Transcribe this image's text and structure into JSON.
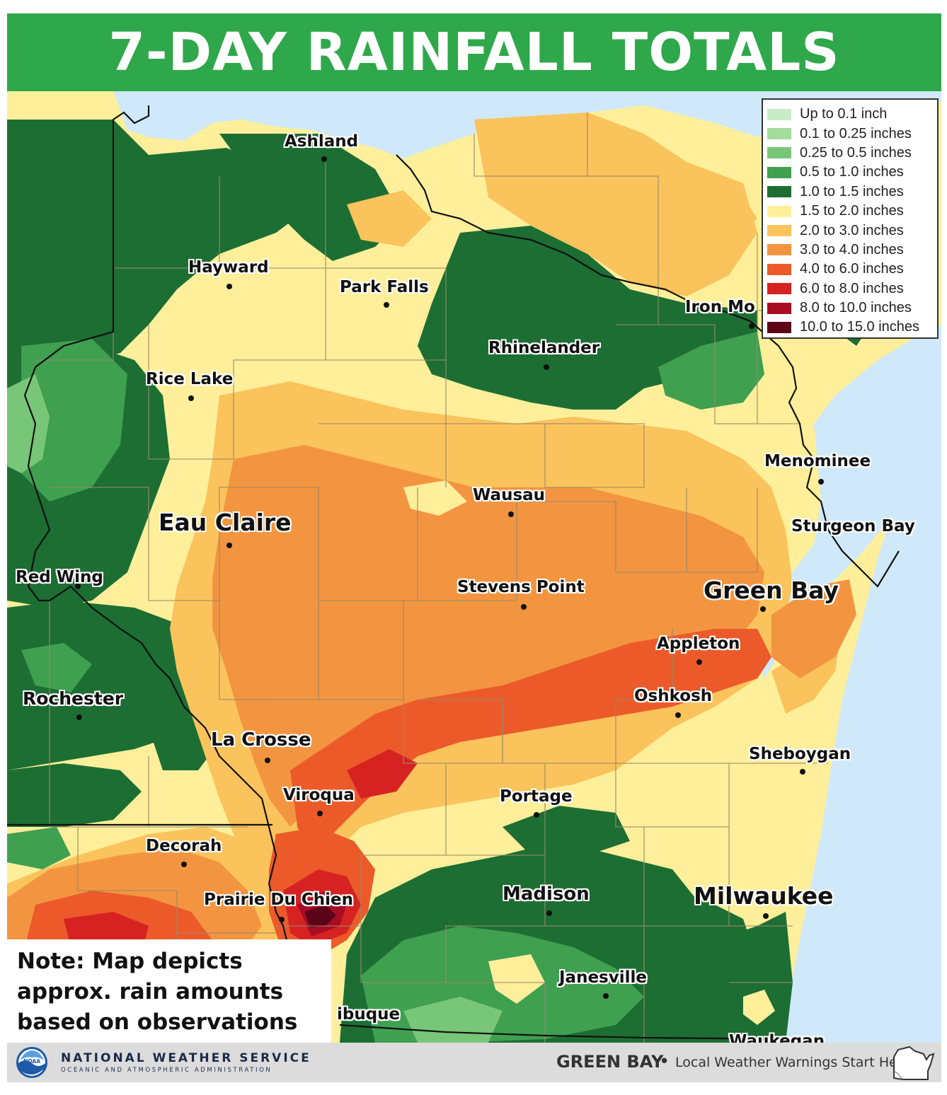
{
  "title": "7-DAY RAINFALL TOTALS",
  "legend": {
    "items": [
      {
        "label": "Up to 0.1 inch",
        "color": "#c8ecc5"
      },
      {
        "label": "0.1 to 0.25 inches",
        "color": "#a4dc9c"
      },
      {
        "label": "0.25 to 0.5 inches",
        "color": "#78c678"
      },
      {
        "label": "0.5 to 1.0 inches",
        "color": "#3fa050"
      },
      {
        "label": "1.0 to 1.5 inches",
        "color": "#1d6e33"
      },
      {
        "label": "1.5 to 2.0 inches",
        "color": "#ffef9a"
      },
      {
        "label": "2.0 to 3.0 inches",
        "color": "#fbc35c"
      },
      {
        "label": "3.0 to 4.0 inches",
        "color": "#f39540"
      },
      {
        "label": "4.0 to 6.0 inches",
        "color": "#ec5a2a"
      },
      {
        "label": "6.0 to 8.0 inches",
        "color": "#d62322"
      },
      {
        "label": "8.0 to 10.0 inches",
        "color": "#a80d24"
      },
      {
        "label": "10.0 to 15.0 inches",
        "color": "#5c0417"
      }
    ]
  },
  "cities": [
    {
      "name": "Ashland"
    },
    {
      "name": "Hayward"
    },
    {
      "name": "Park Falls"
    },
    {
      "name": "Iron Mo"
    },
    {
      "name": "Rhinelander"
    },
    {
      "name": "Rice Lake"
    },
    {
      "name": "Menominee"
    },
    {
      "name": "Wausau"
    },
    {
      "name": "Eau Claire"
    },
    {
      "name": "Sturgeon Bay"
    },
    {
      "name": "Red Wing"
    },
    {
      "name": "Stevens Point"
    },
    {
      "name": "Green Bay"
    },
    {
      "name": "Appleton"
    },
    {
      "name": "Rochester"
    },
    {
      "name": "Oshkosh"
    },
    {
      "name": "La Crosse"
    },
    {
      "name": "Sheboygan"
    },
    {
      "name": "Viroqua"
    },
    {
      "name": "Portage"
    },
    {
      "name": "Decorah"
    },
    {
      "name": "Prairie Du Chien"
    },
    {
      "name": "Madison"
    },
    {
      "name": "Milwaukee"
    },
    {
      "name": "Janesville"
    },
    {
      "name": "ibuque"
    },
    {
      "name": "Waukegan"
    }
  ],
  "note": {
    "line1": "Note: Map depicts",
    "line2": "approx. rain amounts",
    "line3": "based on observations"
  },
  "footer": {
    "agency": "NATIONAL WEATHER SERVICE",
    "agency_sub": "OCEANIC AND ATMOSPHERIC ADMINISTRATION",
    "logo_text": "NOAA",
    "office": "GREEN BAY",
    "tagline": "Local Weather Warnings Start Here"
  },
  "colors": {
    "title_bar": "#2ea84a",
    "water": "#cfe9fb",
    "boundary": "#111111",
    "county_lines": "#9a8a6a"
  }
}
